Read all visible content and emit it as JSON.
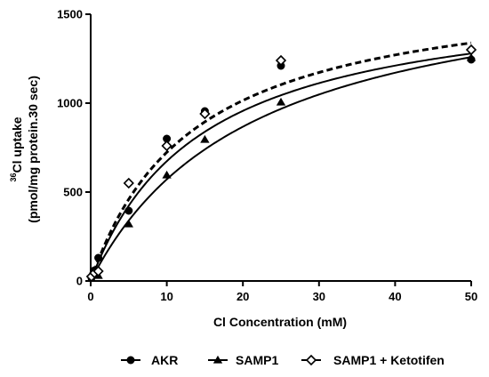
{
  "chart_data": {
    "type": "scatter",
    "title": "",
    "xlabel": "Cl Concentration (mM)",
    "ylabel_superscript": "36",
    "ylabel_line1": "Cl uptake",
    "ylabel_line2": "(pmol/mg protein.30 sec)",
    "xlim": [
      0,
      50
    ],
    "ylim": [
      0,
      1500
    ],
    "x_ticks": [
      0,
      10,
      20,
      30,
      40,
      50
    ],
    "y_ticks": [
      0,
      500,
      1000,
      1500
    ],
    "x_tick_labels": [
      "0",
      "10",
      "20",
      "30",
      "40",
      "50"
    ],
    "y_tick_labels": [
      "0",
      "500",
      "1000",
      "1500"
    ],
    "grid": false,
    "legend_position": "bottom",
    "series": [
      {
        "name": "AKR",
        "marker": "circle",
        "fit_line": "solid",
        "x": [
          0.1,
          0.5,
          1,
          5,
          10,
          15,
          25,
          50
        ],
        "y": [
          20,
          60,
          130,
          395,
          800,
          955,
          1210,
          1245
        ],
        "fit": {
          "vmax": 1650,
          "km": 14.5
        }
      },
      {
        "name": "SAMP1",
        "marker": "triangle",
        "fit_line": "solid",
        "x": [
          0.1,
          0.5,
          1,
          5,
          10,
          15,
          25,
          50
        ],
        "y": [
          15,
          40,
          30,
          320,
          595,
          795,
          1005,
          1255
        ],
        "fit": {
          "vmax": 1800,
          "km": 21.5
        }
      },
      {
        "name": "SAMP1 + Ketotifen",
        "marker": "diamond-open",
        "fit_line": "dashed",
        "x": [
          0.1,
          0.5,
          1,
          5,
          10,
          15,
          25,
          50
        ],
        "y": [
          25,
          45,
          55,
          550,
          760,
          940,
          1240,
          1300
        ],
        "fit": {
          "vmax": 1700,
          "km": 13.5
        }
      }
    ]
  }
}
